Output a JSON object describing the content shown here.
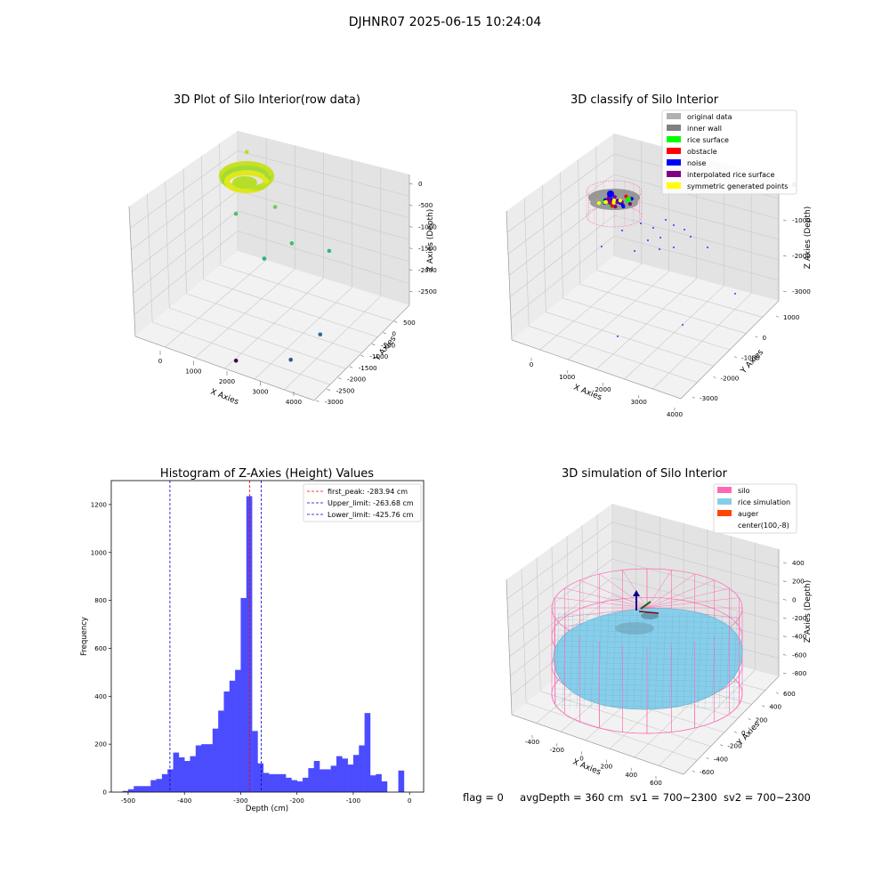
{
  "suptitle": "DJHNR07 2025-06-15 10:24:04",
  "footer": {
    "flag": "flag = 0",
    "avg": "avgDepth = 360 cm",
    "sv1": "sv1 = 700~2300",
    "sv2": "sv2 = 700~2300"
  },
  "chart_data": [
    {
      "type": "scatter3d",
      "title": "3D Plot of Silo Interior(row data)",
      "xlabel": "X Axies",
      "ylabel": "Y Axies",
      "zlabel": "Z Axies (Depth)",
      "xticks": [
        0,
        1000,
        2000,
        3000,
        4000
      ],
      "yticks": [
        500,
        0,
        -500,
        -1000,
        -1500,
        -2000,
        -2500,
        -3000
      ],
      "zticks": [
        0,
        -500,
        -1000,
        -1500,
        -2000,
        -2500
      ],
      "grid": true,
      "colormap": "viridis",
      "points": [
        {
          "x": 250,
          "y": 200,
          "z": -200,
          "color": "#b5de2b"
        },
        {
          "x": 1200,
          "y": -300,
          "z": -350,
          "color": "#95d840"
        },
        {
          "x": 1600,
          "y": -700,
          "z": -600,
          "color": "#6ccd5a"
        },
        {
          "x": 700,
          "y": -900,
          "z": -900,
          "color": "#4ac16d"
        },
        {
          "x": 2300,
          "y": -1100,
          "z": -1000,
          "color": "#3fbc73"
        },
        {
          "x": 2900,
          "y": -500,
          "z": -1300,
          "color": "#35b779"
        },
        {
          "x": 1900,
          "y": -1600,
          "z": -1200,
          "color": "#2db27d"
        },
        {
          "x": 3300,
          "y": -1500,
          "z": -2500,
          "color": "#31688e"
        },
        {
          "x": 3100,
          "y": -2400,
          "z": -2650,
          "color": "#3b528b"
        },
        {
          "x": 2000,
          "y": -2900,
          "z": -2750,
          "color": "#440154"
        }
      ]
    },
    {
      "type": "scatter3d",
      "title": "3D classify of Silo Interior",
      "xlabel": "X Axies",
      "ylabel": "Y Axies",
      "zlabel": "Z Axies (Depth)",
      "xticks": [
        0,
        1000,
        2000,
        3000,
        4000
      ],
      "yticks": [
        1000,
        0,
        -1000,
        -2000,
        -3000
      ],
      "zticks": [
        0,
        -1000,
        -2000,
        -3000
      ],
      "legend_position": "top-right",
      "legend": [
        {
          "label": "original data",
          "color": "#b0b0b0"
        },
        {
          "label": "inner wall",
          "color": "#808080"
        },
        {
          "label": "rice surface",
          "color": "#00ff00"
        },
        {
          "label": "obstacle",
          "color": "#ff0000"
        },
        {
          "label": "noise",
          "color": "#0000ff"
        },
        {
          "label": "interpolated rice surface",
          "color": "#800080"
        },
        {
          "label": "symmetric generated points",
          "color": "#ffff00"
        }
      ]
    },
    {
      "type": "bar",
      "title": "Histogram of Z-Axies (Height) Values",
      "xlabel": "Depth (cm)",
      "ylabel": "Frequency",
      "xlim": [
        -530,
        25
      ],
      "ylim": [
        0,
        1300
      ],
      "xticks": [
        -500,
        -400,
        -300,
        -200,
        -100,
        0
      ],
      "yticks": [
        0,
        200,
        400,
        600,
        800,
        1000,
        1200
      ],
      "bin_width": 10,
      "bin_starts": [
        -510,
        -500,
        -490,
        -480,
        -470,
        -460,
        -450,
        -440,
        -430,
        -420,
        -410,
        -400,
        -390,
        -380,
        -370,
        -360,
        -350,
        -340,
        -330,
        -320,
        -310,
        -300,
        -290,
        -280,
        -270,
        -260,
        -250,
        -240,
        -230,
        -220,
        -210,
        -200,
        -190,
        -180,
        -170,
        -160,
        -150,
        -140,
        -130,
        -120,
        -110,
        -100,
        -90,
        -80,
        -70,
        -60,
        -50,
        -40,
        -30,
        -20,
        -10,
        0
      ],
      "values": [
        5,
        12,
        25,
        25,
        25,
        50,
        55,
        75,
        95,
        165,
        145,
        130,
        150,
        195,
        200,
        200,
        265,
        340,
        420,
        465,
        510,
        810,
        1235,
        255,
        120,
        80,
        75,
        75,
        75,
        60,
        50,
        45,
        60,
        100,
        130,
        95,
        95,
        110,
        150,
        140,
        115,
        155,
        195,
        330,
        70,
        75,
        45,
        0,
        0,
        90,
        0,
        0
      ],
      "bar_color": "#4c4cff",
      "legend_position": "top-right",
      "lines": [
        {
          "label": "first_peak: -283.94 cm",
          "x": -283.94,
          "color": "#ff0000"
        },
        {
          "label": "Upper_limit: -263.68 cm",
          "x": -263.68,
          "color": "#0000cc"
        },
        {
          "label": "Lower_limit: -425.76 cm",
          "x": -425.76,
          "color": "#0000cc"
        }
      ]
    },
    {
      "type": "surface3d",
      "title": "3D simulation of Silo Interior",
      "xlabel": "X Axies",
      "ylabel": "Y Axies",
      "zlabel": "Z Axies (Depth)",
      "xticks": [
        -400,
        -200,
        0,
        200,
        400,
        600
      ],
      "yticks": [
        600,
        400,
        200,
        0,
        -200,
        -400,
        -600
      ],
      "zticks": [
        400,
        200,
        0,
        -200,
        -400,
        -600,
        -800
      ],
      "legend_position": "top-right",
      "legend": [
        {
          "label": "silo",
          "color": "#ff69b4"
        },
        {
          "label": "rice simulation",
          "color": "#87ceeb"
        },
        {
          "label": "auger",
          "color": "#ff4500"
        },
        {
          "label": "center(100,-8)",
          "color": "#ffffff"
        }
      ]
    }
  ]
}
